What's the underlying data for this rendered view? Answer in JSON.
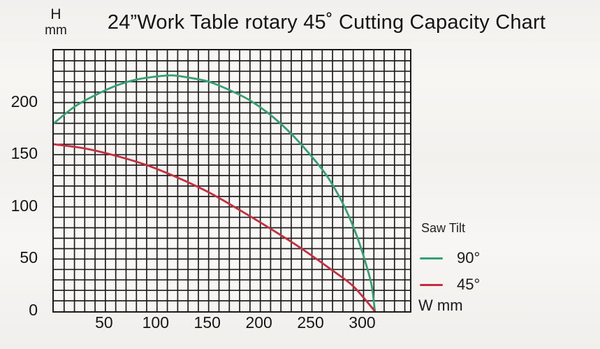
{
  "title": "24”Work Table rotary 45˚ Cutting Capacity Chart",
  "y_axis_unit": {
    "line1": "H",
    "line2": "mm"
  },
  "x_axis_unit": "W mm",
  "legend": {
    "title": "Saw Tilt"
  },
  "colors": {
    "background": "#f5f3f0",
    "grid": "#1f1f1f",
    "plot_border": "#1b1b1b",
    "text": "#161616",
    "series_90": "#35a173",
    "series_45": "#c62e3d"
  },
  "chart_data": {
    "type": "line",
    "title": "24”Work Table rotary 45˚ Cutting Capacity Chart",
    "xlabel": "W mm",
    "ylabel": "H mm",
    "xlim": [
      0,
      345
    ],
    "ylim": [
      0,
      250
    ],
    "grid_step": 10,
    "grid": true,
    "x_ticks": [
      50,
      100,
      150,
      200,
      250,
      300
    ],
    "y_ticks": [
      0,
      50,
      100,
      150,
      200
    ],
    "legend_title": "Saw Tilt",
    "legend_position": "right-outside",
    "series": [
      {
        "name": "90°",
        "color": "#35a173",
        "points": [
          [
            0,
            180
          ],
          [
            20,
            196
          ],
          [
            40,
            207
          ],
          [
            60,
            216
          ],
          [
            80,
            222
          ],
          [
            100,
            225
          ],
          [
            115,
            226
          ],
          [
            130,
            224
          ],
          [
            150,
            220
          ],
          [
            170,
            212
          ],
          [
            190,
            202
          ],
          [
            210,
            188
          ],
          [
            230,
            170
          ],
          [
            250,
            148
          ],
          [
            265,
            129
          ],
          [
            278,
            107
          ],
          [
            288,
            86
          ],
          [
            296,
            65
          ],
          [
            303,
            43
          ],
          [
            308,
            24
          ],
          [
            311,
            0
          ]
        ]
      },
      {
        "name": "45°",
        "color": "#c62e3d",
        "points": [
          [
            0,
            160
          ],
          [
            30,
            156
          ],
          [
            60,
            149
          ],
          [
            90,
            140
          ],
          [
            120,
            128
          ],
          [
            150,
            114
          ],
          [
            180,
            97
          ],
          [
            210,
            79
          ],
          [
            240,
            60
          ],
          [
            270,
            39
          ],
          [
            290,
            24
          ],
          [
            311,
            0
          ]
        ]
      }
    ]
  }
}
